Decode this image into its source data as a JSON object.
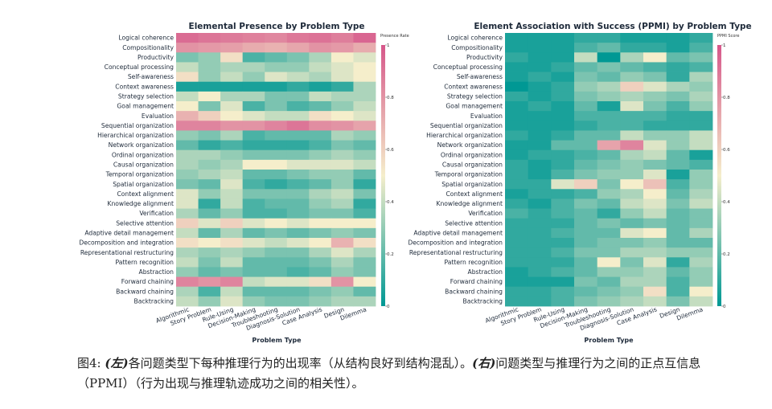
{
  "chart_data": [
    {
      "type": "heatmap",
      "title": "Elemental Presence by Problem Type",
      "xlabel": "Problem Type",
      "colorbar_label": "Presence Rate",
      "colorbar_ticks": [
        "1",
        "0.8",
        "0.6",
        "0.4",
        "0.2",
        "0"
      ],
      "zlim": [
        0,
        1
      ],
      "columns": [
        "Algorithmic",
        "Story Problem",
        "Rule-Using",
        "Decision-Making",
        "Troubleshooting",
        "Diagnosis-Solution",
        "Case Analysis",
        "Design",
        "Dilemma"
      ],
      "rows": [
        "Logical coherence",
        "Compositionality",
        "Productivity",
        "Conceptual processing",
        "Self-awareness",
        "Context awareness",
        "Strategy selection",
        "Goal management",
        "Evaluation",
        "Sequential organization",
        "Hierarchical organization",
        "Network organization",
        "Ordinal organization",
        "Causal organization",
        "Temporal organization",
        "Spatial organization",
        "Context alignment",
        "Knowledge alignment",
        "Verification",
        "Selective attention",
        "Adaptive detail management",
        "Decomposition and integration",
        "Representational restructuring",
        "Pattern recognition",
        "Abstraction",
        "Forward chaining",
        "Backward chaining",
        "Backtracking"
      ],
      "values": [
        [
          0.93,
          0.9,
          0.88,
          0.86,
          0.84,
          0.89,
          0.91,
          0.87,
          0.95
        ],
        [
          0.8,
          0.78,
          0.76,
          0.72,
          0.7,
          0.74,
          0.8,
          0.78,
          0.72
        ],
        [
          0.25,
          0.3,
          0.55,
          0.15,
          0.2,
          0.25,
          0.35,
          0.5,
          0.45
        ],
        [
          0.4,
          0.3,
          0.35,
          0.35,
          0.3,
          0.3,
          0.4,
          0.45,
          0.5
        ],
        [
          0.55,
          0.3,
          0.4,
          0.3,
          0.45,
          0.4,
          0.35,
          0.45,
          0.5
        ],
        [
          0.05,
          0.05,
          0.05,
          0.05,
          0.05,
          0.1,
          0.05,
          0.1,
          0.35
        ],
        [
          0.4,
          0.5,
          0.35,
          0.35,
          0.25,
          0.25,
          0.4,
          0.35,
          0.35
        ],
        [
          0.5,
          0.25,
          0.45,
          0.15,
          0.25,
          0.15,
          0.2,
          0.3,
          0.4
        ],
        [
          0.7,
          0.6,
          0.5,
          0.45,
          0.4,
          0.4,
          0.55,
          0.5,
          0.45
        ],
        [
          0.85,
          0.85,
          0.8,
          0.8,
          0.85,
          0.9,
          0.82,
          0.8,
          0.75
        ],
        [
          0.3,
          0.25,
          0.35,
          0.15,
          0.2,
          0.2,
          0.2,
          0.35,
          0.3
        ],
        [
          0.2,
          0.1,
          0.15,
          0.1,
          0.1,
          0.1,
          0.15,
          0.25,
          0.2
        ],
        [
          0.35,
          0.35,
          0.3,
          0.25,
          0.25,
          0.25,
          0.3,
          0.35,
          0.3
        ],
        [
          0.35,
          0.3,
          0.35,
          0.5,
          0.5,
          0.45,
          0.45,
          0.45,
          0.4
        ],
        [
          0.3,
          0.35,
          0.4,
          0.2,
          0.2,
          0.25,
          0.3,
          0.3,
          0.2
        ],
        [
          0.25,
          0.2,
          0.45,
          0.15,
          0.1,
          0.15,
          0.2,
          0.3,
          0.1
        ],
        [
          0.45,
          0.3,
          0.4,
          0.25,
          0.25,
          0.25,
          0.35,
          0.4,
          0.25
        ],
        [
          0.45,
          0.1,
          0.4,
          0.15,
          0.2,
          0.2,
          0.3,
          0.35,
          0.1
        ],
        [
          0.35,
          0.2,
          0.3,
          0.15,
          0.15,
          0.2,
          0.25,
          0.25,
          0.15
        ],
        [
          0.6,
          0.45,
          0.6,
          0.45,
          0.5,
          0.45,
          0.5,
          0.5,
          0.5
        ],
        [
          0.4,
          0.2,
          0.35,
          0.2,
          0.25,
          0.2,
          0.25,
          0.3,
          0.25
        ],
        [
          0.55,
          0.5,
          0.55,
          0.45,
          0.4,
          0.45,
          0.5,
          0.7,
          0.55
        ],
        [
          0.35,
          0.3,
          0.35,
          0.3,
          0.25,
          0.25,
          0.35,
          0.45,
          0.35
        ],
        [
          0.4,
          0.25,
          0.4,
          0.2,
          0.2,
          0.2,
          0.25,
          0.35,
          0.25
        ],
        [
          0.3,
          0.2,
          0.25,
          0.2,
          0.2,
          0.15,
          0.2,
          0.3,
          0.25
        ],
        [
          0.85,
          0.8,
          0.85,
          0.4,
          0.45,
          0.45,
          0.55,
          0.8,
          0.5
        ],
        [
          0.35,
          0.15,
          0.4,
          0.2,
          0.2,
          0.2,
          0.25,
          0.3,
          0.2
        ],
        [
          0.4,
          0.3,
          0.45,
          0.3,
          0.25,
          0.25,
          0.3,
          0.35,
          0.35
        ]
      ]
    },
    {
      "type": "heatmap",
      "title": "Element Association with Success (PPMI) by Problem Type",
      "xlabel": "Problem Type",
      "colorbar_label": "PPMI Score",
      "colorbar_ticks": [
        "1",
        "0.8",
        "0.6",
        "0.4",
        "0.2",
        "0"
      ],
      "zlim": [
        0,
        1
      ],
      "columns": [
        "Algorithmic",
        "Story Problem",
        "Rule-Using",
        "Decision-Making",
        "Troubleshooting",
        "Diagnosis-Solution",
        "Case Analysis",
        "Design",
        "Dilemma"
      ],
      "rows": [
        "Logical coherence",
        "Compositionality",
        "Productivity",
        "Conceptual processing",
        "Self-awareness",
        "Context awareness",
        "Strategy selection",
        "Goal management",
        "Evaluation",
        "Sequential organization",
        "Hierarchical organization",
        "Network organization",
        "Ordinal organization",
        "Causal organization",
        "Temporal organization",
        "Spatial organization",
        "Context alignment",
        "Knowledge alignment",
        "Verification",
        "Selective attention",
        "Adaptive detail management",
        "Decomposition and integration",
        "Representational restructuring",
        "Pattern recognition",
        "Abstraction",
        "Forward chaining",
        "Backward chaining",
        "Backtracking"
      ],
      "values": [
        [
          0.05,
          0.05,
          0.05,
          0.1,
          0.1,
          0.05,
          0.05,
          0.05,
          0.1
        ],
        [
          0.05,
          0.05,
          0.05,
          0.15,
          0.2,
          0.1,
          0.1,
          0.05,
          0.15
        ],
        [
          0.1,
          0.05,
          0.05,
          0.4,
          0.0,
          0.35,
          0.5,
          0.2,
          0.25
        ],
        [
          0.05,
          0.05,
          0.1,
          0.2,
          0.25,
          0.2,
          0.15,
          0.1,
          0.15
        ],
        [
          0.05,
          0.1,
          0.05,
          0.25,
          0.2,
          0.3,
          0.25,
          0.1,
          0.35
        ],
        [
          0.0,
          0.05,
          0.1,
          0.3,
          0.35,
          0.6,
          0.45,
          0.35,
          0.3
        ],
        [
          0.1,
          0.05,
          0.1,
          0.25,
          0.3,
          0.35,
          0.3,
          0.25,
          0.35
        ],
        [
          0.05,
          0.1,
          0.05,
          0.2,
          0.05,
          0.45,
          0.25,
          0.15,
          0.3
        ],
        [
          0.05,
          0.05,
          0.05,
          0.15,
          0.15,
          0.15,
          0.15,
          0.1,
          0.1
        ],
        [
          0.05,
          0.05,
          0.05,
          0.1,
          0.15,
          0.15,
          0.1,
          0.1,
          0.1
        ],
        [
          0.1,
          0.05,
          0.1,
          0.2,
          0.2,
          0.4,
          0.3,
          0.3,
          0.4
        ],
        [
          0.05,
          0.05,
          0.2,
          0.2,
          0.75,
          0.85,
          0.45,
          0.3,
          0.4
        ],
        [
          0.05,
          0.1,
          0.1,
          0.15,
          0.2,
          0.35,
          0.4,
          0.2,
          0.05
        ],
        [
          0.1,
          0.05,
          0.1,
          0.2,
          0.25,
          0.3,
          0.25,
          0.2,
          0.15
        ],
        [
          0.1,
          0.05,
          0.15,
          0.25,
          0.3,
          0.3,
          0.45,
          0.05,
          0.3
        ],
        [
          0.1,
          0.1,
          0.45,
          0.6,
          0.25,
          0.5,
          0.65,
          0.15,
          0.3
        ],
        [
          0.05,
          0.1,
          0.1,
          0.15,
          0.3,
          0.35,
          0.5,
          0.2,
          0.35
        ],
        [
          0.1,
          0.05,
          0.15,
          0.25,
          0.2,
          0.4,
          0.45,
          0.25,
          0.4
        ],
        [
          0.15,
          0.1,
          0.15,
          0.2,
          0.1,
          0.3,
          0.4,
          0.2,
          0.25
        ],
        [
          0.1,
          0.1,
          0.1,
          0.2,
          0.25,
          0.2,
          0.25,
          0.2,
          0.25
        ],
        [
          0.1,
          0.1,
          0.15,
          0.2,
          0.2,
          0.45,
          0.5,
          0.2,
          0.35
        ],
        [
          0.1,
          0.1,
          0.1,
          0.2,
          0.25,
          0.25,
          0.3,
          0.2,
          0.2
        ],
        [
          0.1,
          0.1,
          0.15,
          0.25,
          0.25,
          0.35,
          0.35,
          0.3,
          0.3
        ],
        [
          0.1,
          0.1,
          0.1,
          0.2,
          0.5,
          0.25,
          0.45,
          0.1,
          0.35
        ],
        [
          0.05,
          0.1,
          0.15,
          0.2,
          0.3,
          0.3,
          0.35,
          0.2,
          0.3
        ],
        [
          0.05,
          0.05,
          0.05,
          0.25,
          0.2,
          0.35,
          0.35,
          0.15,
          0.3
        ],
        [
          0.1,
          0.1,
          0.15,
          0.2,
          0.25,
          0.3,
          0.55,
          0.15,
          0.5
        ],
        [
          0.1,
          0.1,
          0.15,
          0.25,
          0.3,
          0.35,
          0.4,
          0.25,
          0.4
        ]
      ]
    }
  ],
  "caption": {
    "prefix": "图4: ",
    "left_tag": "(左)",
    "left_text": "各问题类型下每种推理行为的出现率（从结构良好到结构混乱）。",
    "right_tag": "(右)",
    "right_text": "问题类型与推理行为之间的正点互信息（PPMI）（行为出现与推理轨迹成功之间的相关性）。"
  },
  "colors": {
    "low": "#009894",
    "mid": "#f5eecb",
    "high": "#d6578a"
  }
}
